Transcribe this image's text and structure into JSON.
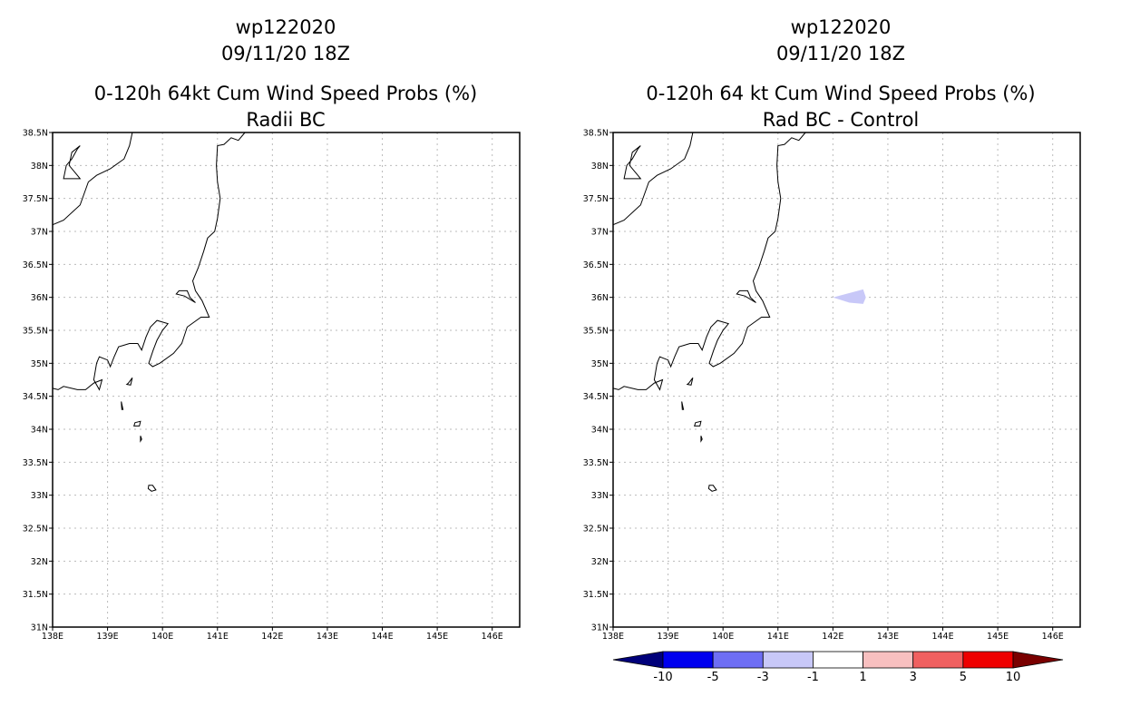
{
  "panels": [
    {
      "id": "left",
      "title_lines": [
        "wp122020",
        "09/11/20 18Z",
        "0-120h 64kt Cum Wind Speed Probs (%)",
        "Radii BC"
      ]
    },
    {
      "id": "right",
      "title_lines": [
        "wp122020",
        "09/11/20 18Z",
        "0-120h 64 kt Cum Wind Speed Probs (%)",
        "Rad BC - Control"
      ]
    }
  ],
  "map": {
    "lon_range": [
      138,
      146.5
    ],
    "lat_range": [
      31,
      38.5
    ],
    "lat_labels": [
      "38.5N",
      "38N",
      "37.5N",
      "37N",
      "36.5N",
      "36N",
      "35.5N",
      "35N",
      "34.5N",
      "34N",
      "33.5N",
      "33N",
      "32.5N",
      "32N",
      "31.5N",
      "31N"
    ],
    "lon_labels": [
      "138E",
      "139E",
      "140E",
      "141E",
      "142E",
      "143E",
      "144E",
      "145E",
      "146E"
    ],
    "grid_style": "dotted"
  },
  "difference_field": {
    "value_bin": "-3 to -1",
    "color": "#c8c8f8",
    "polygon_lonlat": [
      [
        142.0,
        36.0
      ],
      [
        142.55,
        36.12
      ],
      [
        142.6,
        36.0
      ],
      [
        142.55,
        35.9
      ],
      [
        142.3,
        35.92
      ]
    ]
  },
  "colorbar": {
    "labels": [
      "-10",
      "-5",
      "-3",
      "-1",
      "1",
      "3",
      "5",
      "10"
    ],
    "colors": [
      "#00007a",
      "#0000ee",
      "#6e6ef4",
      "#c8c8f8",
      "#ffffff",
      "#f8c0c0",
      "#f06060",
      "#ee0000",
      "#7a0000"
    ]
  },
  "colors": {
    "coast": "#000000",
    "grid": "#bbbbbb"
  }
}
